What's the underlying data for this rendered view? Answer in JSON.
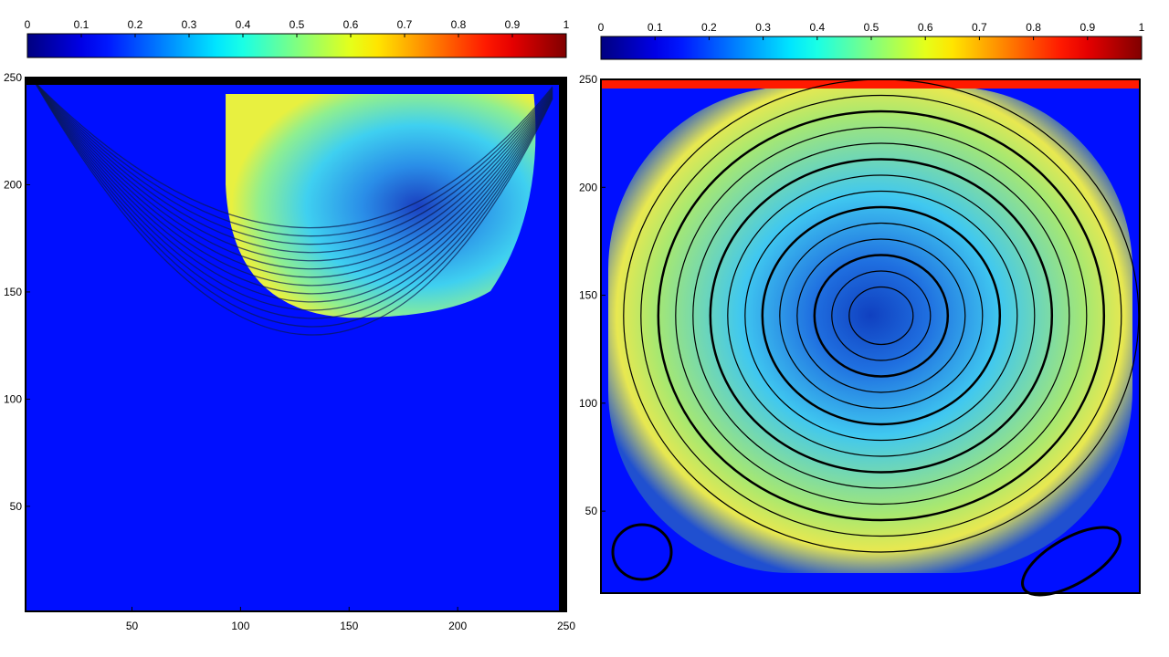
{
  "chart_data": [
    {
      "type": "heatmap",
      "colormap": "jet",
      "colorbar_lim": [
        0,
        1
      ],
      "colorbar_ticks": [
        0,
        0.1,
        0.2,
        0.3,
        0.4,
        0.5,
        0.6,
        0.7,
        0.8,
        0.9,
        1
      ],
      "xlim": [
        1,
        250
      ],
      "xticks": [
        50,
        100,
        150,
        200,
        250
      ],
      "ylim": [
        1,
        250
      ],
      "yticks": [
        50,
        100,
        150,
        200,
        250
      ]
    },
    {
      "type": "heatmap",
      "colormap": "jet",
      "colorbar_lim": [
        0,
        1
      ],
      "colorbar_ticks": [
        0,
        0.1,
        0.2,
        0.3,
        0.4,
        0.5,
        0.6,
        0.7,
        0.8,
        0.9,
        1
      ],
      "xlim": [
        1,
        250
      ],
      "ylim": [
        12,
        250
      ],
      "yticks": [
        50,
        100,
        150,
        200,
        250
      ]
    }
  ]
}
